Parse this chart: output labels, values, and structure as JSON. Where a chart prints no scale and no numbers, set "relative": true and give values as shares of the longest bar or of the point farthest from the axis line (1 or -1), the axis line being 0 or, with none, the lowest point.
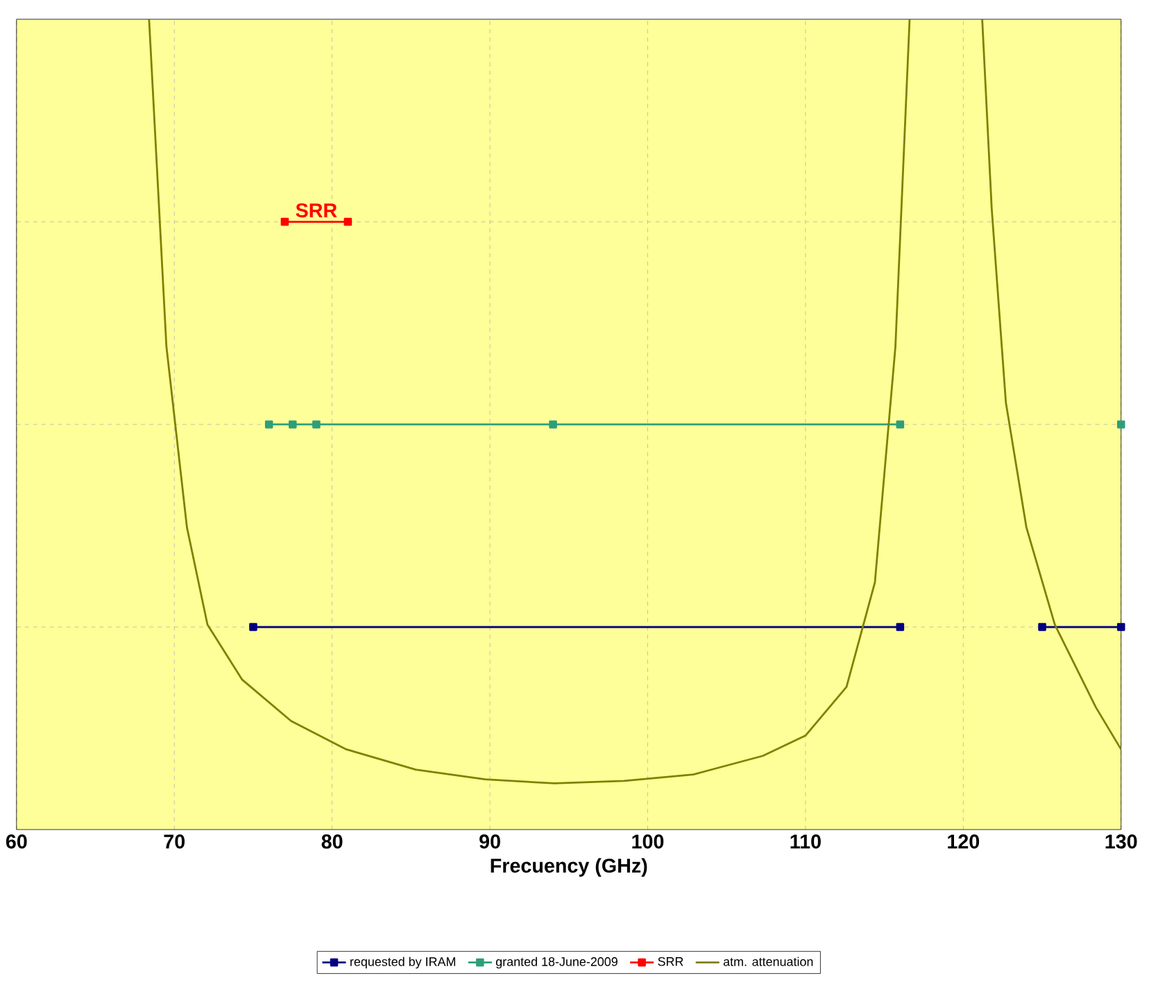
{
  "chart_data": {
    "type": "line",
    "relative": true,
    "xlabel": "Frecuency (GHz)",
    "xlim": [
      60,
      130
    ],
    "xticks": [
      60,
      70,
      80,
      90,
      100,
      110,
      120,
      130
    ],
    "grid": true,
    "legend": "bottom",
    "line_style": "solid",
    "series": [
      {
        "name": "requested by IRAM",
        "color": "#000080",
        "marker": "square",
        "x": [
          75,
          116,
          null,
          125,
          130
        ],
        "values": [
          0.25,
          0.25,
          null,
          0.25,
          0.25
        ]
      },
      {
        "name": "granted 18-June-2009",
        "color": "#2e9e7a",
        "marker": "square",
        "x": [
          76,
          77.5,
          79,
          94,
          116,
          null,
          130
        ],
        "values": [
          0.5,
          0.5,
          0.5,
          0.5,
          0.5,
          null,
          0.5
        ]
      },
      {
        "name": "SRR",
        "color": "#ff0000",
        "marker": "square",
        "x": [
          77,
          81
        ],
        "values": [
          0.75,
          0.75
        ]
      },
      {
        "name": "atm. attenuation",
        "color": "#808000",
        "marker": "none",
        "x": [
          68.4,
          69.5,
          70.8,
          72.1,
          74.3,
          77.4,
          80.9,
          85.3,
          89.7,
          94.1,
          98.5,
          102.9,
          107.3,
          110,
          112.6,
          114.4,
          115.7,
          116.6,
          null,
          121.2,
          121.8,
          122.7,
          124,
          125.8,
          128.4,
          130
        ],
        "values": [
          1,
          0.596,
          0.373,
          0.253,
          0.185,
          0.134,
          0.099,
          0.074,
          0.062,
          0.057,
          0.06,
          0.068,
          0.091,
          0.116,
          0.176,
          0.305,
          0.596,
          1,
          null,
          1,
          0.767,
          0.527,
          0.373,
          0.253,
          0.151,
          0.099
        ]
      }
    ],
    "annotations": [
      {
        "text": "SRR",
        "x": 79,
        "y": 0.75
      }
    ]
  }
}
